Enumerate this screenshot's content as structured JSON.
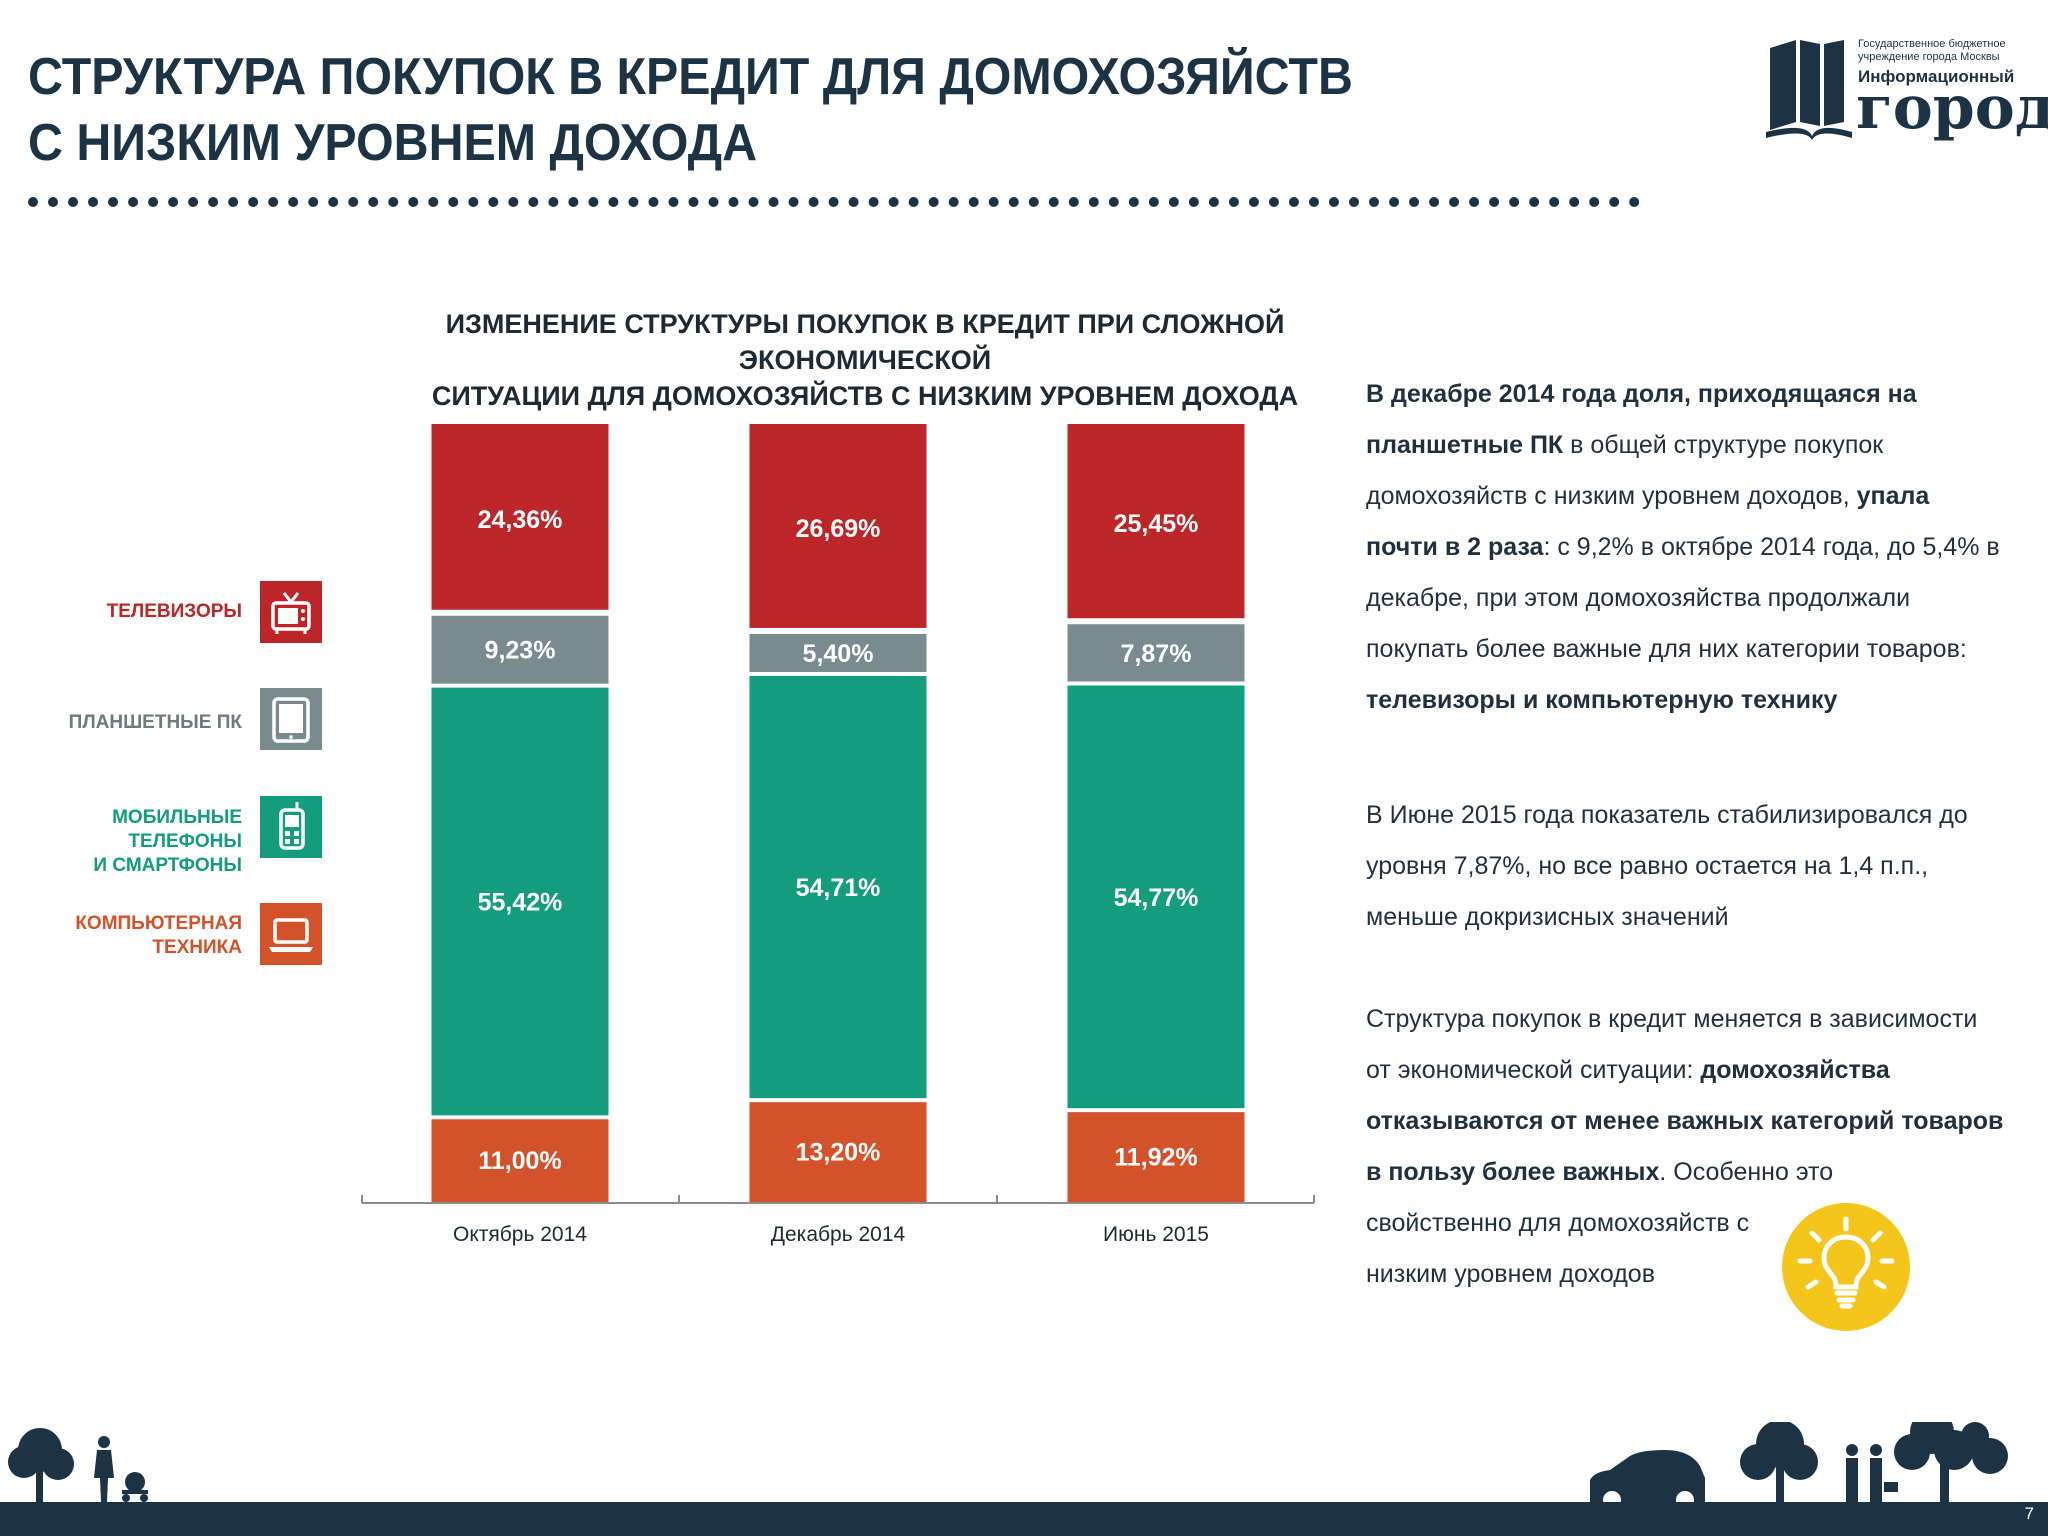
{
  "header": {
    "title_line1": "СТРУКТУРА ПОКУПОК В КРЕДИТ ДЛЯ ДОМОХОЗЯЙСТВ",
    "title_line2": "С НИЗКИМ УРОВНЕМ ДОХОДА"
  },
  "logo": {
    "small_line1": "Государственное бюджетное",
    "small_line2": "учреждение города Москвы",
    "mid": "Информационный",
    "big": "город"
  },
  "chart_data": {
    "type": "bar",
    "stacked": true,
    "title_line1": "ИЗМЕНЕНИЕ СТРУКТУРЫ ПОКУПОК В КРЕДИТ ПРИ СЛОЖНОЙ  ЭКОНОМИЧЕСКОЙ",
    "title_line2": "СИТУАЦИИ ДЛЯ ДОМОХОЗЯЙСТВ С НИЗКИМ УРОВНЕМ ДОХОДА",
    "categories": [
      "Октябрь 2014",
      "Декабрь 2014",
      "Июнь 2015"
    ],
    "series": [
      {
        "name": "КОМПЬЮТЕРНАЯ ТЕХНИКА",
        "color": "#d4522a",
        "values": [
          11.0,
          13.2,
          11.92
        ],
        "labels": [
          "11,00%",
          "13,20%",
          "11,92%"
        ]
      },
      {
        "name": "МОБИЛЬНЫЕ ТЕЛЕФОНЫ И СМАРТФОНЫ",
        "color": "#139c7e",
        "values": [
          55.42,
          54.71,
          54.77
        ],
        "labels": [
          "55,42%",
          "54,71%",
          "54,77%"
        ]
      },
      {
        "name": "ПЛАНШЕТНЫЕ ПК",
        "color": "#7a8b90",
        "values": [
          9.23,
          5.4,
          7.87
        ],
        "labels": [
          "9,23%",
          "5,40%",
          "7,87%"
        ]
      },
      {
        "name": "ТЕЛЕВИЗОРЫ",
        "color": "#bd2628",
        "values": [
          24.36,
          26.69,
          25.45
        ],
        "labels": [
          "24,36%",
          "26,69%",
          "25,45%"
        ]
      }
    ],
    "ylim": [
      0,
      100
    ],
    "legend_placement": "left",
    "grid": false
  },
  "legend": {
    "tv": {
      "label": "ТЕЛЕВИЗОРЫ",
      "color": "#bd2628",
      "icon": "tv-icon"
    },
    "tablet": {
      "label": "ПЛАНШЕТНЫЕ ПК",
      "color": "#7a8b90",
      "icon": "tablet-icon"
    },
    "mobile": {
      "line1": "МОБИЛЬНЫЕ ТЕЛЕФОНЫ",
      "line2": "И СМАРТФОНЫ",
      "color": "#139c7e",
      "icon": "phone-icon"
    },
    "computer": {
      "line1": "КОМПЬЮТЕРНАЯ",
      "line2": "ТЕХНИКА",
      "color": "#d4522a",
      "icon": "laptop-icon"
    }
  },
  "side": {
    "p1": {
      "b1": "В декабре 2014 года доля, приходящаяся на планшетные ПК",
      "t1": " в общей структуре покупок домохозяйств с низким уровнем доходов, ",
      "b2": "упала почти в 2 раза",
      "t2": ": с 9,2% в октябре 2014 года, до 5,4% в декабре, при этом домохозяйства продолжали покупать более важные для них категории товаров: ",
      "b3": "телевизоры и компьютерную технику"
    },
    "p2": "В Июне 2015 года показатель стабилизировался до уровня 7,87%, но все равно остается на 1,4 п.п., меньше докризисных значений",
    "p3": {
      "t1": "Структура покупок в кредит меняется в зависимости от экономической ситуации:  ",
      "b1": "домохозяйства отказываются от менее важных категорий товаров в пользу более важных",
      "t2": ". Особенно это",
      "t3": " свойственно для домохозяйств с",
      "t4": "низким уровнем доходов"
    }
  },
  "footer": {
    "page_number": "7"
  }
}
